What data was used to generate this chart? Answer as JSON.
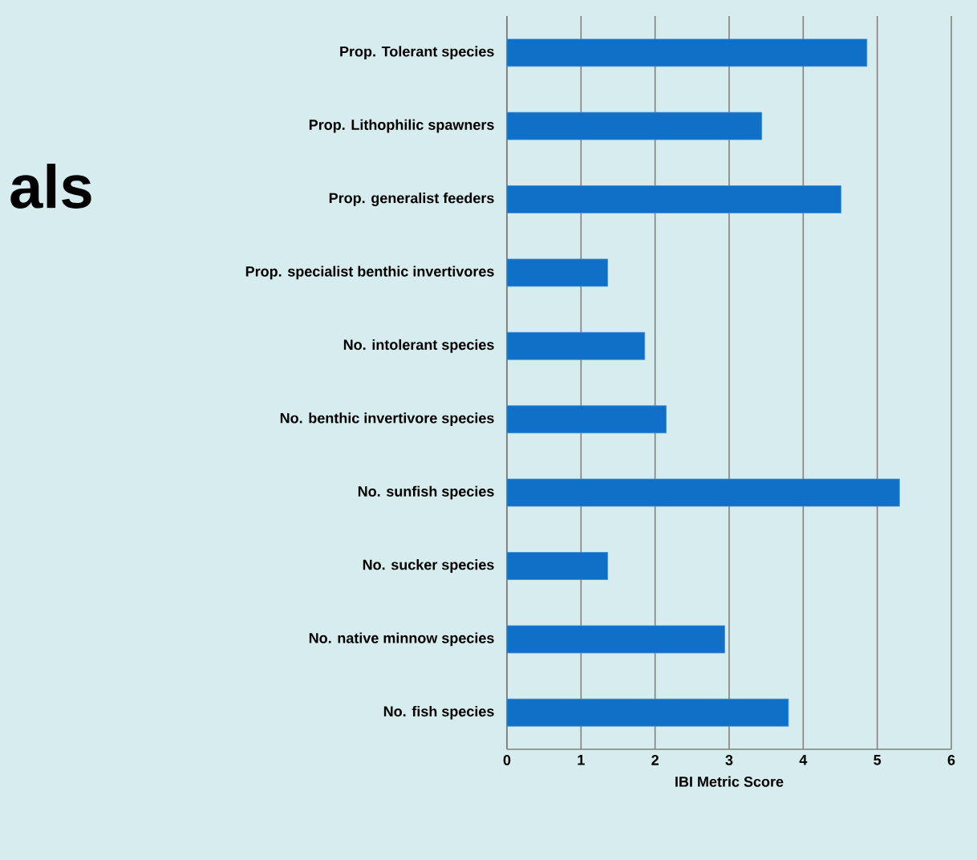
{
  "chart_data": {
    "type": "bar",
    "orientation": "horizontal",
    "xlabel": "IBI Metric Score",
    "categories": [
      "Prop. Tolerant species",
      "Prop. Lithophilic spawners",
      "Prop. generalist feeders",
      "Prop. specialist benthic invertivores",
      "No. intolerant species",
      "No. benthic invertivore species",
      "No. sunfish species",
      "No. sucker species",
      "No. native minnow species",
      "No. fish species"
    ],
    "values": [
      4.86,
      3.44,
      4.51,
      1.36,
      1.86,
      2.15,
      5.3,
      1.36,
      2.94,
      3.8
    ],
    "color": "#1070c8",
    "xlim": [
      0,
      6
    ],
    "xticks": [
      0,
      1,
      2,
      3,
      4,
      5,
      6
    ],
    "grid": "x",
    "annotations": [
      "als"
    ]
  }
}
